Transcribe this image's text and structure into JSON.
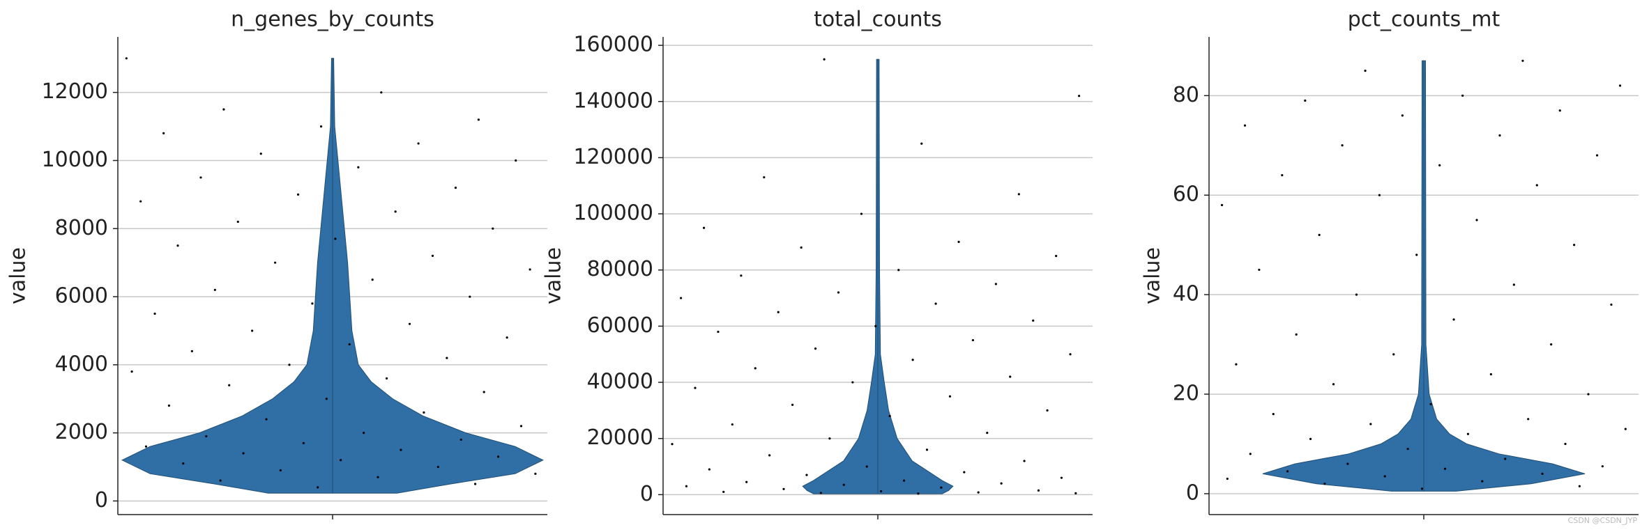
{
  "chart_data": [
    {
      "type": "violin",
      "title": "n_genes_by_counts",
      "ylabel": "value",
      "color": "#2f6fa5",
      "ylim": [
        -400,
        13630
      ],
      "yticks": [
        0,
        2000,
        4000,
        6000,
        8000,
        10000,
        12000
      ],
      "grid": true,
      "violin": {
        "y": [
          230,
          500,
          800,
          1200,
          1600,
          2000,
          2500,
          3000,
          3500,
          4000,
          5000,
          6000,
          7000,
          8000,
          9000,
          10000,
          11000,
          13000
        ],
        "width": [
          0.3,
          0.55,
          0.85,
          0.98,
          0.85,
          0.62,
          0.42,
          0.28,
          0.18,
          0.12,
          0.09,
          0.08,
          0.07,
          0.055,
          0.04,
          0.025,
          0.01,
          0.005
        ]
      },
      "points": [
        13000,
        12000,
        11500,
        11200,
        11000,
        10800,
        10500,
        10200,
        10000,
        9800,
        9500,
        9200,
        9000,
        8800,
        8500,
        8200,
        8000,
        7700,
        7500,
        7200,
        7000,
        6800,
        6500,
        6200,
        6000,
        5800,
        5500,
        5200,
        5000,
        4800,
        4600,
        4400,
        4200,
        4000,
        3800,
        3600,
        3400,
        3200,
        3000,
        2800,
        2600,
        2400,
        2200,
        2000,
        1900,
        1800,
        1700,
        1600,
        1500,
        1400,
        1300,
        1200,
        1100,
        1000,
        900,
        800,
        700,
        600,
        500,
        400
      ]
    },
    {
      "type": "violin",
      "title": "total_counts",
      "ylabel": "value",
      "color": "#2f6fa5",
      "ylim": [
        -7100,
        163000
      ],
      "yticks": [
        0,
        20000,
        40000,
        60000,
        80000,
        100000,
        120000,
        140000,
        160000
      ],
      "grid": true,
      "violin": {
        "y": [
          300,
          1500,
          3000,
          5000,
          8000,
          12000,
          20000,
          30000,
          40000,
          50000,
          80000,
          155000
        ],
        "width": [
          0.3,
          0.33,
          0.35,
          0.3,
          0.24,
          0.16,
          0.09,
          0.05,
          0.03,
          0.012,
          0.008,
          0.006
        ]
      },
      "points": [
        155000,
        142000,
        125000,
        113000,
        107000,
        100000,
        95000,
        90000,
        88000,
        85000,
        80000,
        78000,
        75000,
        72000,
        70000,
        68000,
        65000,
        62000,
        60000,
        58000,
        55000,
        52000,
        50000,
        48000,
        45000,
        42000,
        40000,
        38000,
        35000,
        32000,
        30000,
        28000,
        25000,
        22000,
        20000,
        18000,
        16000,
        14000,
        12000,
        10000,
        9000,
        8000,
        7000,
        6000,
        5000,
        4500,
        4000,
        3500,
        3000,
        2500,
        2000,
        1500,
        1200,
        1000,
        800,
        600,
        500,
        400
      ]
    },
    {
      "type": "violin",
      "title": "pct_counts_mt",
      "ylabel": "value",
      "color": "#2f6fa5",
      "ylim": [
        -4.2,
        91.8
      ],
      "yticks": [
        0,
        20,
        40,
        60,
        80
      ],
      "grid": true,
      "violin": {
        "y": [
          0.5,
          2,
          4,
          6,
          8,
          10,
          12,
          15,
          20,
          30,
          87
        ],
        "width": [
          0.15,
          0.5,
          0.75,
          0.6,
          0.35,
          0.2,
          0.12,
          0.06,
          0.025,
          0.01,
          0.008
        ]
      },
      "points": [
        87,
        85,
        82,
        80,
        79,
        77,
        76,
        74,
        72,
        70,
        68,
        66,
        64,
        62,
        60,
        58,
        55,
        52,
        50,
        48,
        45,
        42,
        40,
        38,
        35,
        32,
        30,
        28,
        26,
        24,
        22,
        20,
        18,
        16,
        15,
        14,
        13,
        12,
        11,
        10,
        9,
        8,
        7,
        6,
        5.5,
        5,
        4.5,
        4,
        3.5,
        3,
        2.5,
        2,
        1.5,
        1
      ]
    }
  ],
  "watermark": "CSDN @CSDN_JYP"
}
